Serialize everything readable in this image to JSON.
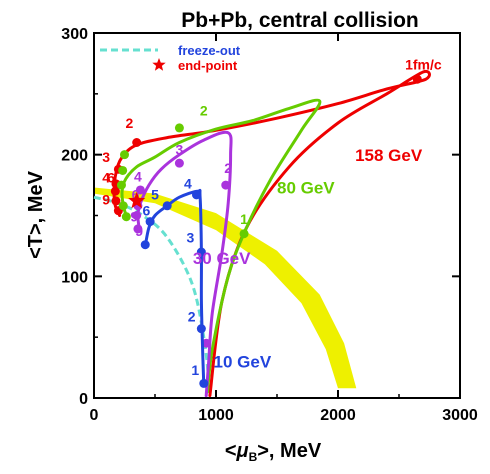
{
  "chart_data": {
    "type": "line",
    "title": "Pb+Pb, central collision",
    "xlabel": {
      "prefix": "<",
      "symbol": "μ",
      "sub": "B",
      "suffix": ">, MeV"
    },
    "ylabel": "<T>, MeV",
    "xlim": [
      0,
      3000
    ],
    "ylim": [
      0,
      300
    ],
    "x_ticks": [
      0,
      1000,
      2000,
      3000
    ],
    "y_ticks": [
      0,
      100,
      200,
      300
    ],
    "grid": false,
    "legend": {
      "position": "top-left",
      "items": [
        {
          "label": "freeze-out",
          "style": "dashed",
          "color": "#66e0d0"
        },
        {
          "label": "end-point",
          "style": "star",
          "color": "#ee0000"
        }
      ]
    },
    "band": {
      "color": "#eef000",
      "inner": [
        [
          0,
          168
        ],
        [
          500,
          160
        ],
        [
          1000,
          138
        ],
        [
          1400,
          110
        ],
        [
          1700,
          78
        ],
        [
          1900,
          40
        ],
        [
          2000,
          8
        ]
      ],
      "outer": [
        [
          0,
          173
        ],
        [
          500,
          168
        ],
        [
          1000,
          152
        ],
        [
          1500,
          121
        ],
        [
          1850,
          85
        ],
        [
          2050,
          45
        ],
        [
          2150,
          8
        ]
      ]
    },
    "freeze_out": {
      "color": "#66e0d0",
      "points": [
        [
          0,
          165
        ],
        [
          200,
          160
        ],
        [
          400,
          150
        ],
        [
          600,
          132
        ],
        [
          800,
          95
        ],
        [
          900,
          50
        ],
        [
          950,
          5
        ]
      ]
    },
    "endpoint": {
      "x": 350,
      "y": 162,
      "color": "#ee0000"
    },
    "series": [
      {
        "name": "158 GeV",
        "color": "#ee0000",
        "curve": [
          [
            950,
            2
          ],
          [
            1050,
            80
          ],
          [
            1250,
            140
          ],
          [
            1600,
            190
          ],
          [
            2000,
            226
          ],
          [
            2400,
            250
          ],
          [
            2700,
            268
          ],
          [
            2720,
            262
          ],
          [
            2400,
            254
          ],
          [
            2000,
            242
          ],
          [
            1500,
            230
          ],
          [
            1000,
            220
          ],
          [
            600,
            214
          ],
          [
            350,
            208
          ],
          [
            230,
            198
          ],
          [
            180,
            185
          ],
          [
            165,
            170
          ],
          [
            175,
            158
          ],
          [
            210,
            150
          ]
        ],
        "points": [
          {
            "x": 2650,
            "y": 262,
            "label": "1fm/c",
            "lx": 2700,
            "ly": 270
          },
          {
            "x": 350,
            "y": 210,
            "label": "2",
            "lx": 290,
            "ly": 222
          },
          {
            "x": 200,
            "y": 188,
            "label": "3",
            "lx": 100,
            "ly": 194
          },
          {
            "x": 180,
            "y": 176,
            "label": "4",
            "lx": 100,
            "ly": 177
          },
          {
            "x": 175,
            "y": 170,
            "label": "6",
            "lx": 140,
            "ly": 177
          },
          {
            "x": 180,
            "y": 162,
            "label": "9",
            "lx": 100,
            "ly": 159
          },
          {
            "x": 200,
            "y": 154,
            "label": "",
            "lx": 0,
            "ly": 0
          }
        ],
        "annotation": {
          "text": "158 GeV",
          "x": 2140,
          "y": 195
        }
      },
      {
        "name": "80 GeV",
        "color": "#66cc00",
        "curve": [
          [
            930,
            5
          ],
          [
            970,
            40
          ],
          [
            1100,
            100
          ],
          [
            1250,
            140
          ],
          [
            1450,
            180
          ],
          [
            1700,
            220
          ],
          [
            1850,
            244
          ],
          [
            1600,
            238
          ],
          [
            1300,
            228
          ],
          [
            1000,
            221
          ],
          [
            700,
            210
          ],
          [
            500,
            198
          ],
          [
            350,
            190
          ],
          [
            260,
            180
          ],
          [
            230,
            170
          ],
          [
            240,
            158
          ],
          [
            265,
            150
          ]
        ],
        "points": [
          {
            "x": 1230,
            "y": 135,
            "label": "1",
            "lx": 1230,
            "ly": 143
          },
          {
            "x": 700,
            "y": 222,
            "label": "2",
            "lx": 900,
            "ly": 232
          },
          {
            "x": 250,
            "y": 200,
            "label": "",
            "lx": 0,
            "ly": 0
          },
          {
            "x": 235,
            "y": 187,
            "label": "",
            "lx": 0,
            "ly": 0
          },
          {
            "x": 225,
            "y": 175,
            "label": "",
            "lx": 0,
            "ly": 0
          },
          {
            "x": 240,
            "y": 158,
            "label": "",
            "lx": 0,
            "ly": 0
          },
          {
            "x": 265,
            "y": 149,
            "label": "",
            "lx": 0,
            "ly": 0
          }
        ],
        "annotation": {
          "text": "80 GeV",
          "x": 1500,
          "y": 168
        }
      },
      {
        "name": "30 GeV",
        "color": "#aa33dd",
        "curve": [
          [
            920,
            2
          ],
          [
            940,
            30
          ],
          [
            970,
            70
          ],
          [
            1050,
            120
          ],
          [
            1100,
            160
          ],
          [
            1120,
            200
          ],
          [
            1100,
            218
          ],
          [
            900,
            212
          ],
          [
            700,
            200
          ],
          [
            550,
            188
          ],
          [
            450,
            175
          ],
          [
            380,
            160
          ],
          [
            360,
            150
          ],
          [
            370,
            140
          ]
        ],
        "points": [
          {
            "x": 920,
            "y": 45,
            "label": "",
            "lx": 0,
            "ly": 0
          },
          {
            "x": 1080,
            "y": 175,
            "label": "2",
            "lx": 1100,
            "ly": 185
          },
          {
            "x": 700,
            "y": 193,
            "label": "3",
            "lx": 700,
            "ly": 200
          },
          {
            "x": 380,
            "y": 171,
            "label": "4",
            "lx": 360,
            "ly": 178
          },
          {
            "x": 360,
            "y": 158,
            "label": "6",
            "lx": 340,
            "ly": 163
          },
          {
            "x": 350,
            "y": 150,
            "label": "9",
            "lx": 330,
            "ly": 145
          },
          {
            "x": 360,
            "y": 139,
            "label": "9",
            "lx": 370,
            "ly": 133
          }
        ],
        "annotation": {
          "text": "30 GeV",
          "x": 810,
          "y": 110
        }
      },
      {
        "name": "10 GeV",
        "color": "#2244dd",
        "curve": [
          [
            900,
            10
          ],
          [
            890,
            40
          ],
          [
            880,
            80
          ],
          [
            880,
            120
          ],
          [
            870,
            165
          ],
          [
            850,
            170
          ],
          [
            700,
            165
          ],
          [
            600,
            158
          ],
          [
            500,
            150
          ],
          [
            450,
            140
          ],
          [
            420,
            125
          ]
        ],
        "points": [
          {
            "x": 900,
            "y": 12,
            "label": "1",
            "lx": 830,
            "ly": 19
          },
          {
            "x": 880,
            "y": 57,
            "label": "2",
            "lx": 800,
            "ly": 63
          },
          {
            "x": 880,
            "y": 120,
            "label": "3",
            "lx": 790,
            "ly": 128
          },
          {
            "x": 840,
            "y": 167,
            "label": "4",
            "lx": 770,
            "ly": 172
          },
          {
            "x": 600,
            "y": 158,
            "label": "5",
            "lx": 500,
            "ly": 163
          },
          {
            "x": 460,
            "y": 145,
            "label": "6",
            "lx": 430,
            "ly": 150
          },
          {
            "x": 420,
            "y": 126,
            "label": "",
            "lx": 0,
            "ly": 0
          }
        ],
        "annotation": {
          "text": "10 GeV",
          "x": 980,
          "y": 25
        }
      }
    ]
  }
}
